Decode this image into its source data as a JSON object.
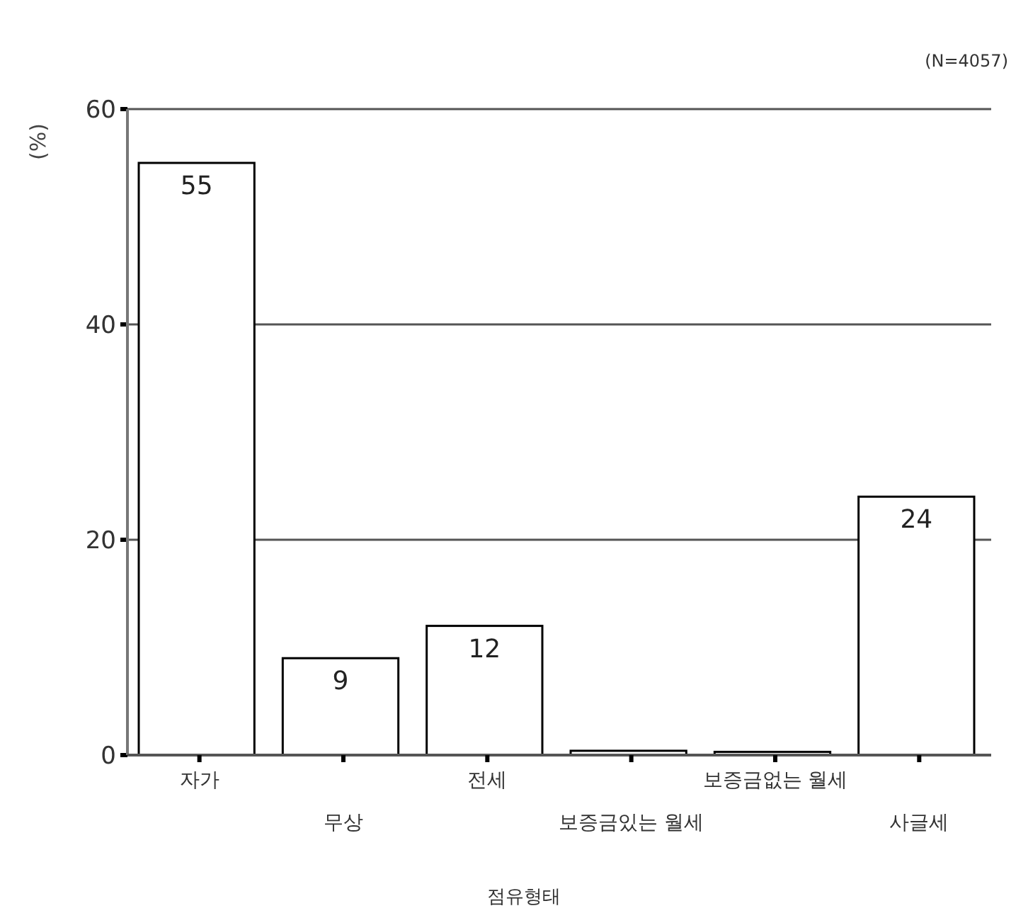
{
  "chart_data": {
    "type": "bar",
    "xlabel": "점유형태",
    "ylabel": "(%)",
    "annotations": [
      "(N=4057)"
    ],
    "categories": [
      "자가",
      "무상",
      "전세",
      "보증금있는 월세",
      "보증금없는 월세",
      "사글세"
    ],
    "values": [
      55,
      9,
      12,
      0.4,
      0.3,
      24
    ],
    "value_labels": [
      "55",
      "9",
      "12",
      null,
      null,
      "24"
    ],
    "color": "#ffffff",
    "ylim": [
      0,
      60
    ],
    "yticks": [
      0,
      20,
      40,
      60
    ],
    "grid": "y"
  }
}
